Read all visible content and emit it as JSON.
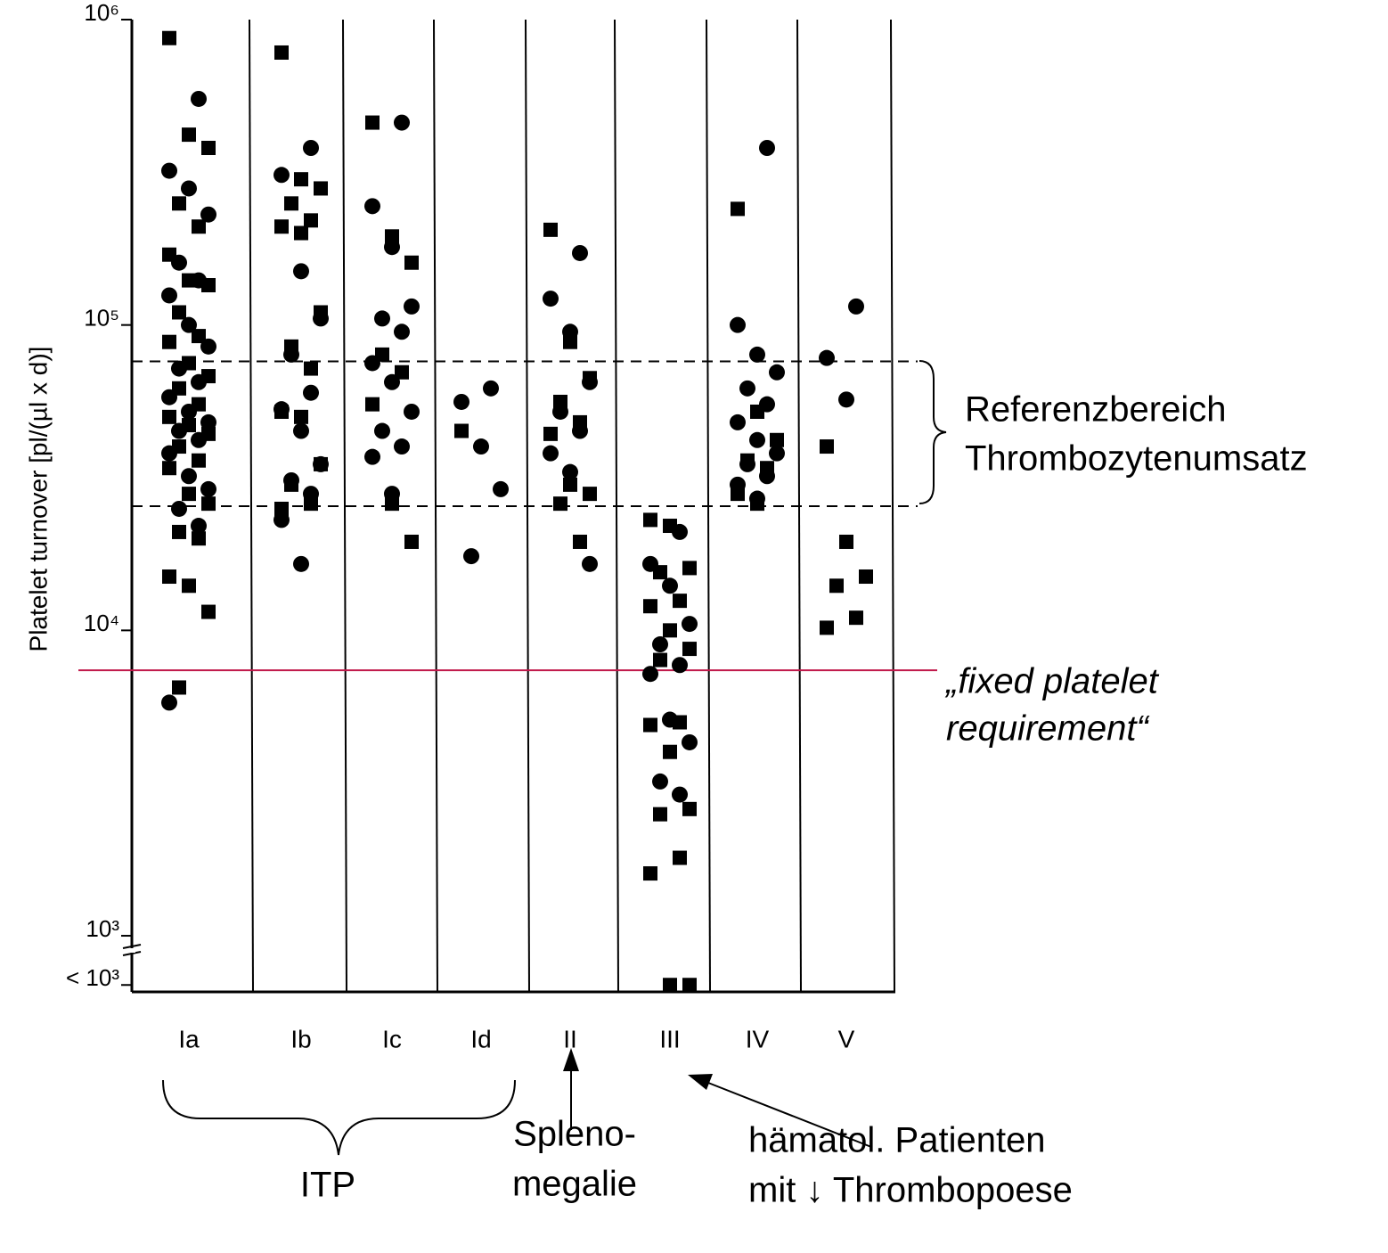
{
  "chart_data": {
    "type": "strip",
    "y_label": "Platelet turnover [pl/(µl x d)]",
    "log_y": true,
    "ylim": [
      655,
      1000000
    ],
    "yticks": [
      {
        "value": 690,
        "label": "< 10³"
      },
      {
        "value": 1000,
        "label": "10³"
      },
      {
        "value": 10000,
        "label": "10⁴"
      },
      {
        "value": 100000,
        "label": "10⁵"
      },
      {
        "value": 1000000,
        "label": "10⁶"
      }
    ],
    "categories": [
      "Ia",
      "Ib",
      "Ic",
      "Id",
      "II",
      "III",
      "IV",
      "V"
    ],
    "series": [
      {
        "marker": "square",
        "color": "#000000",
        "values": [
          [
            870000,
            420000,
            380000,
            250000,
            210000,
            170000,
            140000,
            135000,
            110000,
            92000,
            88000,
            75000,
            68000,
            62000,
            55000,
            50000,
            47000,
            44000,
            40000,
            36000,
            34000,
            28000,
            26000,
            21000,
            20000,
            15000,
            14000,
            11500,
            6500
          ],
          [
            780000,
            300000,
            280000,
            250000,
            220000,
            210000,
            200000,
            110000,
            85000,
            72000,
            52000,
            50000,
            35000,
            30000,
            26000,
            25000
          ],
          [
            460000,
            195000,
            160000,
            80000,
            70000,
            55000,
            26000,
            19500
          ],
          [
            45000
          ],
          [
            205000,
            88000,
            67000,
            56000,
            48000,
            44000,
            30000,
            28000,
            26000,
            19500
          ],
          [
            23000,
            22000,
            16000,
            15500,
            12500,
            12000,
            10000,
            8700,
            8000,
            5000,
            4900,
            4000,
            2600,
            2500,
            1800,
            1600,
            690,
            690
          ],
          [
            240000,
            52000,
            42000,
            36000,
            34000,
            28000,
            26000
          ],
          [
            40000,
            19500,
            15000,
            14000,
            11000,
            10200
          ]
        ]
      },
      {
        "marker": "circle",
        "color": "#000000",
        "values": [
          [
            550000,
            320000,
            280000,
            230000,
            160000,
            140000,
            125000,
            100000,
            85000,
            72000,
            65000,
            58000,
            52000,
            48000,
            45000,
            42000,
            38000,
            32000,
            29000,
            25000,
            22000,
            5800
          ],
          [
            380000,
            310000,
            150000,
            105000,
            80000,
            60000,
            53000,
            45000,
            35000,
            31000,
            28000,
            23000,
            16500
          ],
          [
            460000,
            245000,
            180000,
            115000,
            105000,
            95000,
            75000,
            65000,
            52000,
            45000,
            40000,
            37000,
            28000
          ],
          [
            62000,
            56000,
            40000,
            29000,
            17500
          ],
          [
            172000,
            122000,
            95000,
            65000,
            52000,
            45000,
            38000,
            33000,
            16500
          ],
          [
            21000,
            16500,
            14000,
            10500,
            9000,
            7700,
            7200,
            5100,
            4300,
            3200,
            2900
          ],
          [
            380000,
            100000,
            80000,
            70000,
            62000,
            55000,
            48000,
            42000,
            38000,
            35000,
            32000,
            30000,
            27000
          ],
          [
            115000,
            78000,
            57000
          ]
        ]
      }
    ],
    "reference_range": {
      "values": [
        25500,
        76000
      ],
      "label": [
        "Referenzbereich",
        "Thrombozytenumsatz"
      ]
    },
    "threshold": {
      "value": 7400,
      "color": "#c0184a",
      "label": [
        "„fixed platelet",
        "requirement“"
      ]
    },
    "annotations": [
      {
        "text": [
          "ITP"
        ]
      },
      {
        "text": [
          "Spleno-",
          "megalie"
        ]
      },
      {
        "text": [
          "hämatol. Patienten",
          "mit ↓ Thrombopoese"
        ]
      }
    ]
  }
}
